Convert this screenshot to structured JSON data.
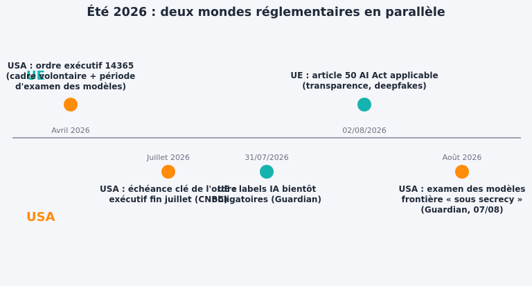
{
  "title": "Été 2026 : deux mondes réglementaires en parallèle",
  "legend": {
    "ue": {
      "label": "UE",
      "color": "#14b3ad"
    },
    "usa": {
      "label": "USA",
      "color": "#ff8c0a"
    }
  },
  "axis_color": "#9ca3af",
  "events": [
    {
      "id": "e1",
      "side": "top",
      "region": "usa",
      "date": "Avril 2026",
      "label": "USA : ordre exécutif 14365\n(cadre volontaire + période\nd'examen des modèles)"
    },
    {
      "id": "e2",
      "side": "top",
      "region": "ue",
      "date": "02/08/2026",
      "label": "UE : article 50 AI Act applicable\n(transparence, deepfakes)"
    },
    {
      "id": "e3",
      "side": "bottom",
      "region": "usa",
      "date": "Juillet 2026",
      "label": "USA : échéance clé de l'ordre\nexécutif fin juillet (CNBC)"
    },
    {
      "id": "e4",
      "side": "bottom",
      "region": "ue",
      "date": "31/07/2026",
      "label": "UE : labels IA bientôt\nobligatoires (Guardian)"
    },
    {
      "id": "e5",
      "side": "bottom",
      "region": "usa",
      "date": "Août 2026",
      "label": "USA : examen des modèles\nfrontière « sous secrecy »\n(Guardian, 07/08)"
    }
  ]
}
